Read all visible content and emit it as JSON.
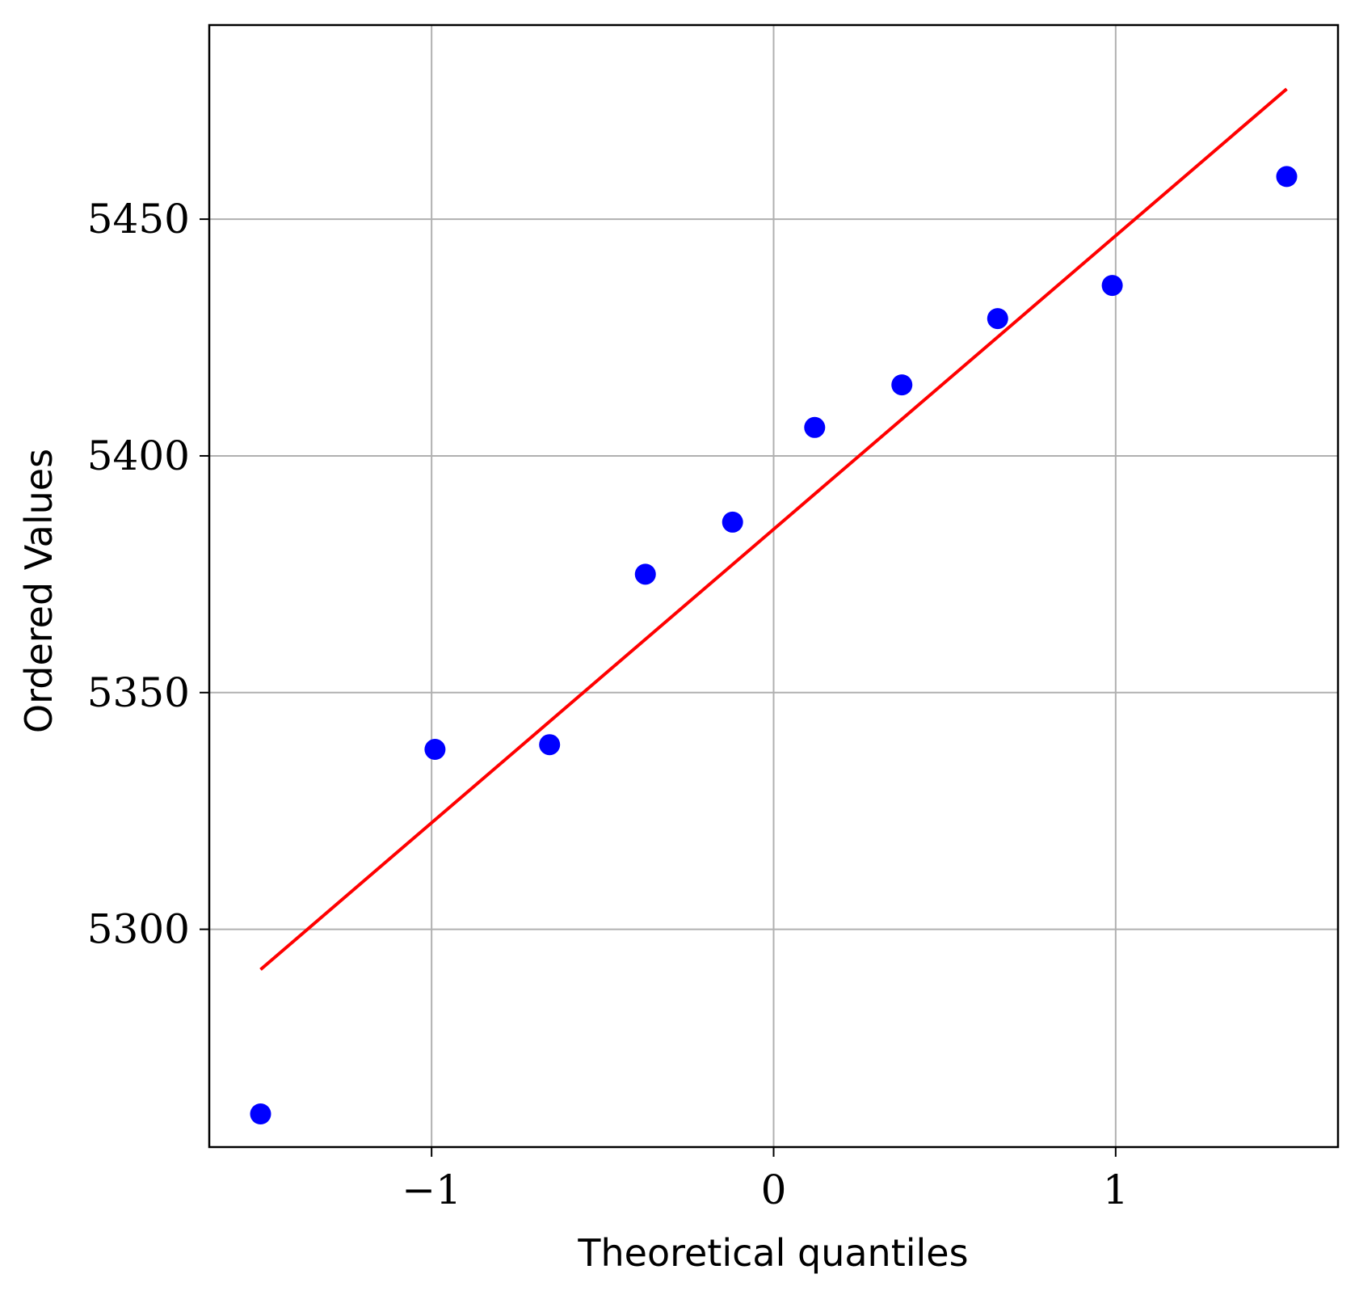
{
  "chart_data": {
    "type": "scatter",
    "title": "",
    "xlabel": "Theoretical quantiles",
    "ylabel": "Ordered Values",
    "xlim": [
      -1.65,
      1.65
    ],
    "ylim": [
      5254,
      5491
    ],
    "grid": true,
    "x_ticks": [
      {
        "value": -1,
        "label": "−1"
      },
      {
        "value": 0,
        "label": "0"
      },
      {
        "value": 1,
        "label": "1"
      }
    ],
    "y_ticks": [
      {
        "value": 5300,
        "label": "5300"
      },
      {
        "value": 5350,
        "label": "5350"
      },
      {
        "value": 5400,
        "label": "5400"
      },
      {
        "value": 5450,
        "label": "5450"
      }
    ],
    "points": {
      "x": [
        -1.5,
        -0.99,
        -0.655,
        -0.375,
        -0.12,
        0.12,
        0.375,
        0.655,
        0.99,
        1.5
      ],
      "y": [
        5261,
        5338,
        5339,
        5375,
        5386,
        5406,
        5415,
        5429,
        5436,
        5459
      ],
      "color": "#0000ff"
    },
    "fit_line": {
      "x": [
        -1.5,
        1.5
      ],
      "y": [
        5291.5,
        5477.5
      ],
      "color": "#ff0000"
    },
    "colors": {
      "grid": "#b0b0b0",
      "axes": "#000000"
    }
  }
}
